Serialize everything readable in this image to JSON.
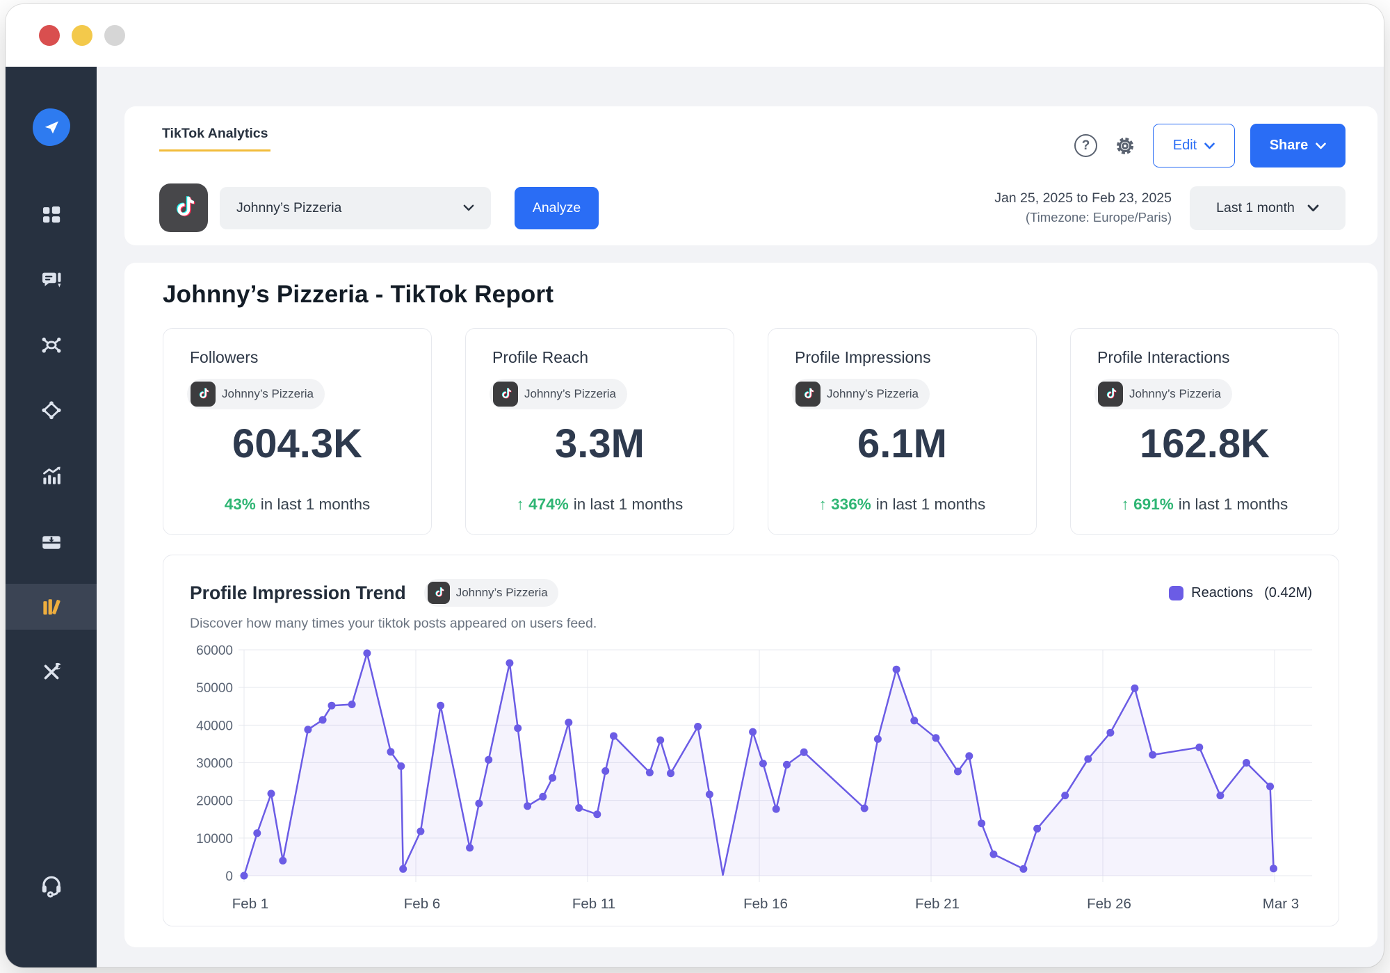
{
  "window": {
    "traffic_lights": {
      "close": "#d94f4f",
      "minimize": "#f3c94b",
      "zoom": "#d6d6d6"
    }
  },
  "sidebar": {
    "colors": {
      "bg": "#273140",
      "active_bg": "#3b4454",
      "icon": "#dde3ed",
      "active_icon": "#efae3e",
      "logo_blue": "#2e7bf0"
    },
    "icons": [
      "paper-plane-logo",
      "dashboard-grid",
      "posts-comment",
      "network-hub",
      "route-diamond",
      "analytics-bars",
      "inbox-download",
      "library-books",
      "tools",
      "headset-support"
    ],
    "active_icon_name": "library-books"
  },
  "header": {
    "tab_label": "TikTok Analytics",
    "help_glyph": "?",
    "edit_button": "Edit",
    "share_button": "Share",
    "account_select": {
      "value": "Johnny’s Pizzeria"
    },
    "analyze_button": "Analyze",
    "date_range": "Jan 25, 2025 to Feb 23, 2025",
    "timezone": "(Timezone: Europe/Paris)",
    "period_select": {
      "value": "Last 1 month"
    },
    "accent_blue": "#2a6df5",
    "tab_underline_color": "#f2bc3b"
  },
  "report": {
    "title": "Johnny’s Pizzeria - TikTok Report",
    "change_green": "#2eb573",
    "metric_cards": [
      {
        "title": "Followers",
        "account": "Johnny’s Pizzeria",
        "value": "604.3K",
        "change": "43%",
        "suffix": "in last 1 months"
      },
      {
        "title": "Profile Reach",
        "account": "Johnny’s Pizzeria",
        "value": "3.3M",
        "change": "↑ 474%",
        "suffix": "in last 1 months"
      },
      {
        "title": "Profile Impressions",
        "account": "Johnny’s Pizzeria",
        "value": "6.1M",
        "change": "↑ 336%",
        "suffix": "in last 1 months"
      },
      {
        "title": "Profile Interactions",
        "account": "Johnny’s Pizzeria",
        "value": "162.8K",
        "change": "↑ 691%",
        "suffix": "in last 1 months"
      }
    ]
  },
  "trend": {
    "title": "Profile Impression Trend",
    "account": "Johnny’s Pizzeria",
    "subtitle": "Discover how many times your tiktok posts appeared on users feed.",
    "legend_label": "Reactions",
    "legend_value": "(0.42M)"
  },
  "chart_data": {
    "type": "line",
    "title": "Profile Impression Trend",
    "x_unit": "days since Feb 1",
    "x_ticks": [
      "Feb 1",
      "Feb 6",
      "Feb 11",
      "Feb 16",
      "Feb 21",
      "Feb 26",
      "Mar 3"
    ],
    "x_tick_days": [
      0,
      5,
      10,
      15,
      20,
      25,
      30
    ],
    "y_ticks": [
      0,
      10000,
      20000,
      30000,
      40000,
      50000,
      60000
    ],
    "ylim": [
      0,
      60000
    ],
    "xlim": [
      0,
      31.1
    ],
    "grid": true,
    "legend_position": "top-right",
    "line_color": "#6b5ce5",
    "point_color": "#6b5ce5",
    "fill_opacity": 0.07,
    "grid_color": "#e7e9ef",
    "y_tick_color": "#5a6474",
    "x_tick_color": "#46505f",
    "series": [
      {
        "name": "Reactions",
        "total": "0.42M",
        "points": [
          [
            0.0,
            0
          ],
          [
            0.38,
            11300
          ],
          [
            0.79,
            21800
          ],
          [
            1.13,
            4000
          ],
          [
            1.86,
            38800
          ],
          [
            2.29,
            41400
          ],
          [
            2.55,
            45200
          ],
          [
            3.14,
            45500
          ],
          [
            3.58,
            59100
          ],
          [
            4.27,
            32900
          ],
          [
            4.57,
            29100
          ],
          [
            4.63,
            1800
          ],
          [
            5.14,
            11800
          ],
          [
            5.72,
            45200
          ],
          [
            6.57,
            7400
          ],
          [
            6.84,
            19200
          ],
          [
            7.12,
            30800
          ],
          [
            7.73,
            56500
          ],
          [
            7.97,
            39200
          ],
          [
            8.25,
            18500
          ],
          [
            8.7,
            21000
          ],
          [
            8.98,
            26000
          ],
          [
            9.45,
            40700
          ],
          [
            9.75,
            18000
          ],
          [
            10.28,
            16300
          ],
          [
            10.52,
            27800
          ],
          [
            10.76,
            37100
          ],
          [
            11.81,
            27400
          ],
          [
            12.12,
            36000
          ],
          [
            12.42,
            27200
          ],
          [
            13.21,
            39600
          ],
          [
            13.55,
            21600
          ],
          [
            13.94,
            200,
            0
          ],
          [
            14.81,
            38200
          ],
          [
            15.11,
            29800
          ],
          [
            15.49,
            17700
          ],
          [
            15.8,
            29500
          ],
          [
            16.3,
            32800
          ],
          [
            18.06,
            17900
          ],
          [
            18.45,
            36300
          ],
          [
            18.99,
            54800
          ],
          [
            19.51,
            41200
          ],
          [
            20.14,
            36600
          ],
          [
            20.78,
            27700
          ],
          [
            21.11,
            31800
          ],
          [
            21.47,
            13900
          ],
          [
            21.82,
            5700
          ],
          [
            22.69,
            1800
          ],
          [
            23.09,
            12500
          ],
          [
            23.9,
            21300
          ],
          [
            24.57,
            31000
          ],
          [
            25.22,
            38000
          ],
          [
            25.93,
            49800
          ],
          [
            26.45,
            32100
          ],
          [
            27.81,
            34100
          ],
          [
            28.42,
            21300
          ],
          [
            29.18,
            30000
          ],
          [
            29.87,
            23700
          ],
          [
            29.97,
            1900
          ]
        ]
      }
    ]
  }
}
